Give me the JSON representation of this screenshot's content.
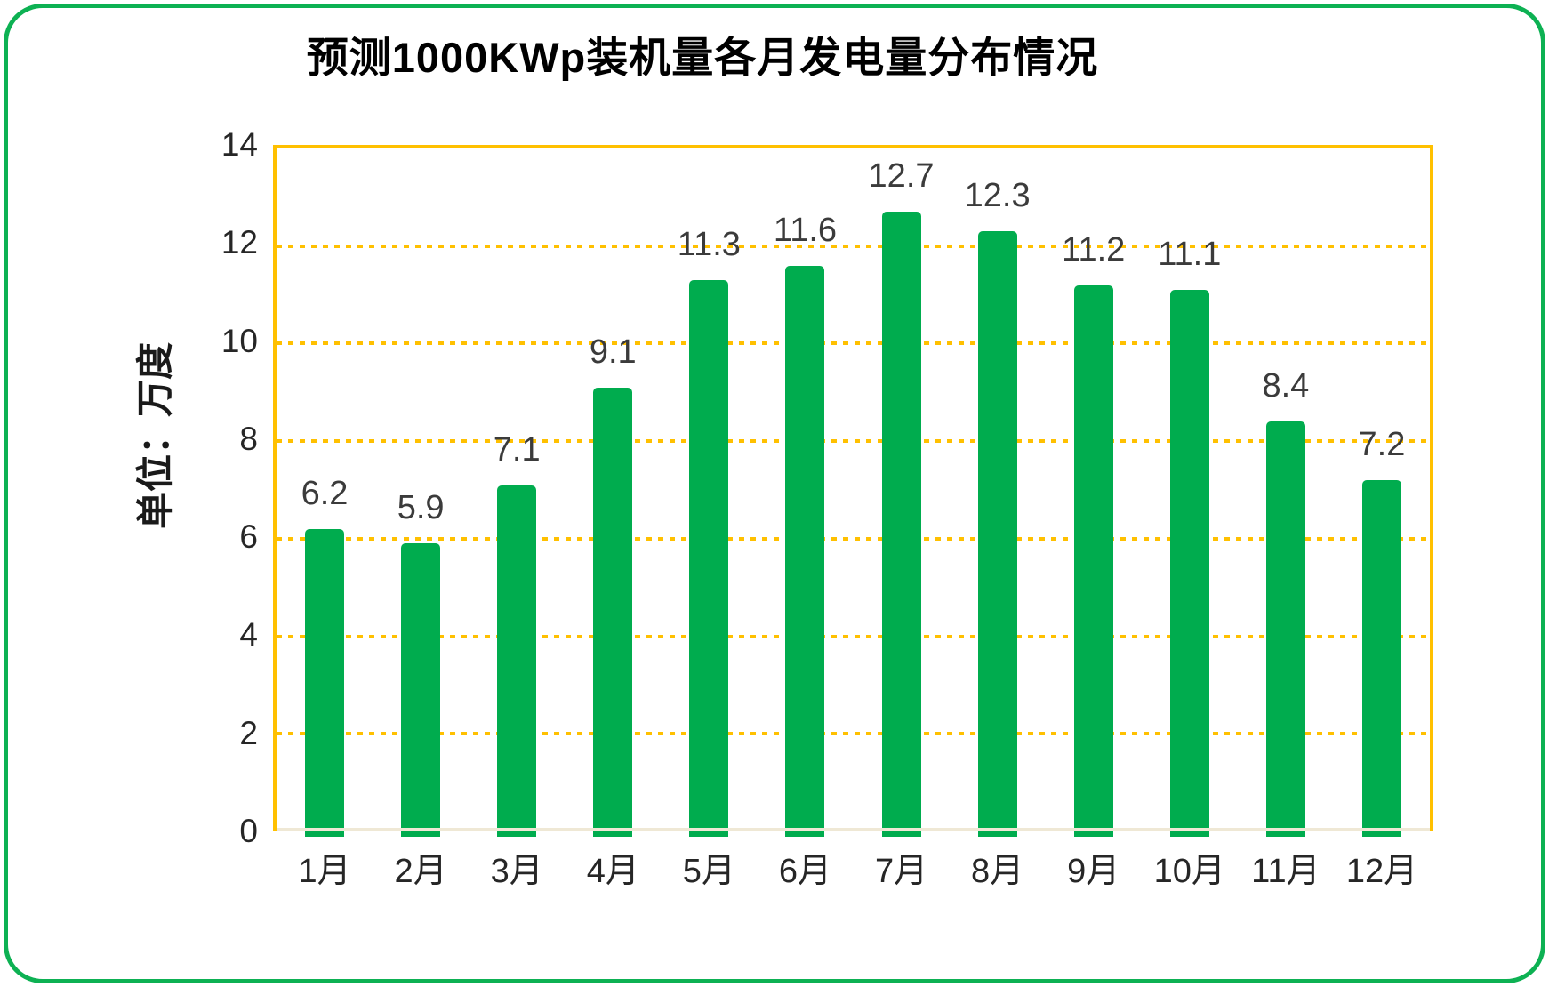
{
  "chart_data": {
    "type": "bar",
    "title": "预测1000KWp装机量各月发电量分布情况",
    "ylabel": "单位：万度",
    "xlabel": "",
    "categories": [
      "1月",
      "2月",
      "3月",
      "4月",
      "5月",
      "6月",
      "7月",
      "8月",
      "9月",
      "10月",
      "11月",
      "12月"
    ],
    "values": [
      6.2,
      5.9,
      7.1,
      9.1,
      11.3,
      11.6,
      12.7,
      12.3,
      11.2,
      11.1,
      8.4,
      7.2
    ],
    "ylim": [
      0,
      14
    ],
    "yticks": [
      0,
      2,
      4,
      6,
      8,
      10,
      12,
      14
    ],
    "grid": "horizontal-dotted",
    "legend": "none",
    "colors": {
      "bar": "#00AC4E",
      "grid": "#FFC000",
      "plot_border": "#FFC000",
      "baseline": "#EFE8D5",
      "outer_border": "#0DB153",
      "value_label": "#3B3B3B",
      "tick_label": "#262626",
      "title": "#000000"
    }
  }
}
